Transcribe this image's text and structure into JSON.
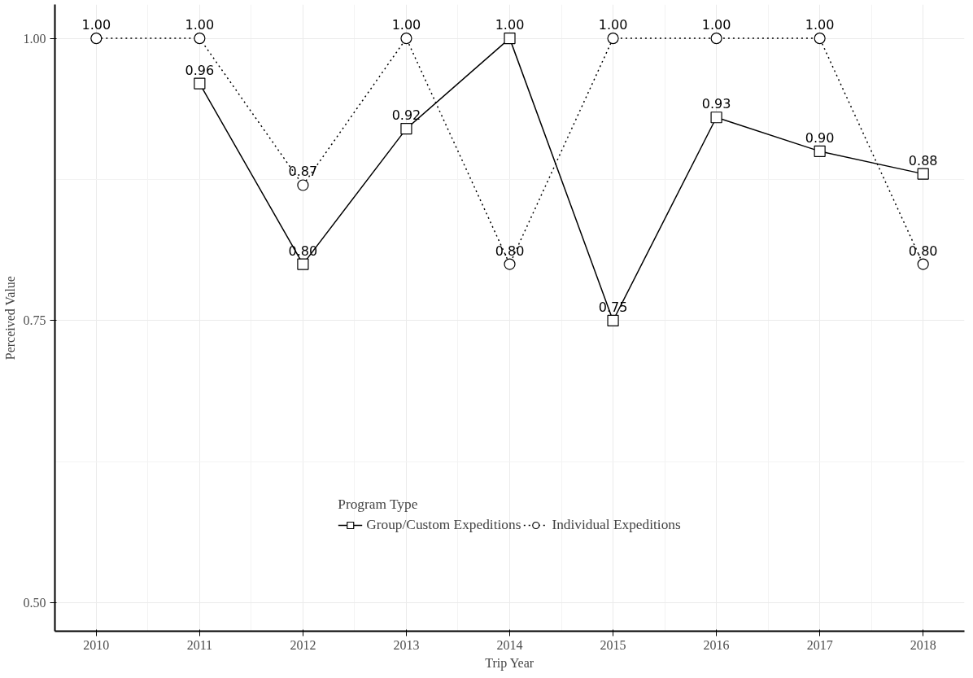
{
  "chart_data": {
    "type": "line",
    "xlabel": "Trip Year",
    "ylabel": "Perceived Value",
    "legend_title": "Program Type",
    "x": [
      2010,
      2011,
      2012,
      2013,
      2014,
      2015,
      2016,
      2017,
      2018
    ],
    "series": [
      {
        "name": "Group/Custom Expeditions",
        "color": "#000000",
        "marker": "square",
        "line_style": "solid",
        "values": [
          null,
          0.96,
          0.8,
          0.92,
          1.0,
          0.75,
          0.93,
          0.9,
          0.88
        ],
        "value_labels": [
          null,
          "0.96",
          "0.80",
          "0.92",
          "1.00",
          "0.75",
          "0.93",
          "0.90",
          "0.88"
        ]
      },
      {
        "name": "Individual Expeditions",
        "color": "#000000",
        "marker": "circle",
        "line_style": "dotted",
        "values": [
          1.0,
          1.0,
          0.87,
          1.0,
          0.8,
          1.0,
          1.0,
          1.0,
          0.8
        ],
        "value_labels": [
          "1.00",
          "1.00",
          "0.87",
          "1.00",
          "0.80",
          "1.00",
          "1.00",
          "1.00",
          "0.80"
        ]
      }
    ],
    "xlim": [
      2009.6,
      2018.4
    ],
    "xticks": [
      2010,
      2011,
      2012,
      2013,
      2014,
      2015,
      2016,
      2017,
      2018
    ],
    "ylim": [
      0.475,
      1.03
    ],
    "yticks": [
      {
        "value": 0.5,
        "label": "0.50"
      },
      {
        "value": 0.75,
        "label": "0.75"
      },
      {
        "value": 1.0,
        "label": "1.00"
      }
    ],
    "grid": true,
    "legend": "bottom"
  }
}
